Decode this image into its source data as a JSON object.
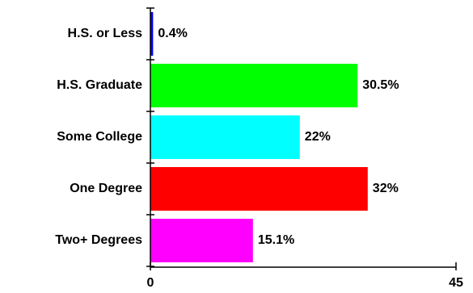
{
  "chart_data": {
    "type": "bar",
    "orientation": "horizontal",
    "categories": [
      "H.S. or Less",
      "H.S. Graduate",
      "Some College",
      "One Degree",
      "Two+ Degrees"
    ],
    "values": [
      0.4,
      30.5,
      22,
      32,
      15.1
    ],
    "value_labels": [
      "0.4%",
      "30.5%",
      "22%",
      "32%",
      "15.1%"
    ],
    "colors": [
      "#0000ff",
      "#00ff00",
      "#00ffff",
      "#ff0000",
      "#ff00ff"
    ],
    "xlim": [
      0,
      45
    ],
    "x_tick_labels": [
      "0",
      "45"
    ],
    "title": "",
    "xlabel": "",
    "ylabel": "",
    "grid": false,
    "legend": "none"
  }
}
